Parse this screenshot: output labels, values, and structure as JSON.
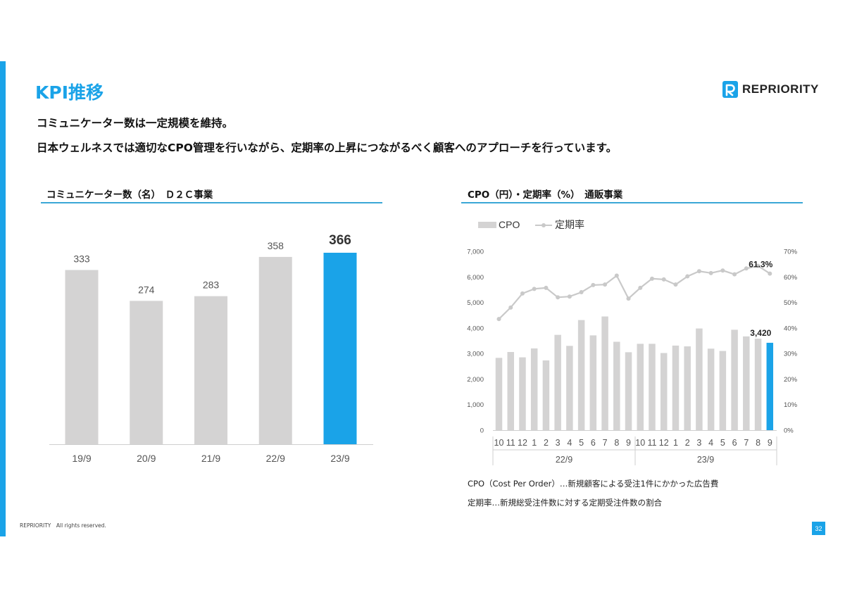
{
  "page": {
    "title": "KPI推移",
    "subtitle1": "コミュニケーター数は一定規模を維持。",
    "subtitle2": "日本ウェルネスでは適切なCPO管理を行いながら、定期率の上昇につながるべく顧客へのアプローチを行っています。",
    "logo_text": "REPRIORITY",
    "copyright": "REPRIORITY　All rights reserved.",
    "page_number": "32",
    "footnote_cpo": "CPO（Cost Per Order）…新規顧客による受注1件にかかった広告費",
    "footnote_rate": "定期率…新規総受注件数に対する定期受注件数の割合"
  },
  "colors": {
    "accent": "#1aa3e8",
    "bar_gray": "#d4d3d3",
    "line_gray": "#c9c9c9",
    "rule": "#3ba7d6"
  },
  "chart_data": [
    {
      "type": "bar",
      "title": "コミュニケーター数（名）　Ｄ２Ｃ事業",
      "categories": [
        "19/9",
        "20/9",
        "21/9",
        "22/9",
        "23/9"
      ],
      "values": [
        333,
        274,
        283,
        358,
        366
      ],
      "labels": [
        "333",
        "274",
        "283",
        "358",
        "366"
      ],
      "highlight_index": 4,
      "ylim": [
        0,
        400
      ]
    },
    {
      "type": "bar+line",
      "title": "CPO（円）・定期率（%）　通販事業",
      "legend": [
        "CPO",
        "定期率"
      ],
      "legend_position": "top-left",
      "x_labels": [
        "10",
        "11",
        "12",
        "1",
        "2",
        "3",
        "4",
        "5",
        "6",
        "7",
        "8",
        "9",
        "10",
        "11",
        "12",
        "1",
        "2",
        "3",
        "4",
        "5",
        "6",
        "7",
        "8",
        "9"
      ],
      "group_labels": [
        "22/9",
        "23/9"
      ],
      "series": [
        {
          "name": "CPO",
          "type": "bar",
          "axis": "left",
          "values": [
            2830,
            3060,
            2850,
            3200,
            2730,
            3730,
            3300,
            4310,
            3710,
            4450,
            3460,
            3050,
            3380,
            3380,
            3020,
            3310,
            3280,
            3980,
            3190,
            3100,
            3930,
            3670,
            3580,
            3420
          ]
        },
        {
          "name": "定期率",
          "type": "line",
          "axis": "right",
          "values": [
            43.5,
            48.0,
            53.5,
            55.3,
            55.7,
            52.0,
            52.3,
            54.0,
            56.8,
            57.0,
            60.5,
            51.5,
            55.7,
            59.3,
            59.0,
            57.0,
            60.2,
            62.2,
            61.5,
            62.5,
            61.0,
            63.3,
            64.3,
            61.3
          ]
        }
      ],
      "y_left": {
        "ticks": [
          "0",
          "1,000",
          "2,000",
          "3,000",
          "4,000",
          "5,000",
          "6,000",
          "7,000"
        ],
        "ylim": [
          0,
          7000
        ]
      },
      "y_right": {
        "ticks": [
          "0%",
          "10%",
          "20%",
          "30%",
          "40%",
          "50%",
          "60%",
          "70%"
        ],
        "ylim": [
          0,
          70
        ]
      },
      "annotations": {
        "last_bar": "3,420",
        "last_rate": "61.3%"
      },
      "highlight_index": 23
    }
  ]
}
